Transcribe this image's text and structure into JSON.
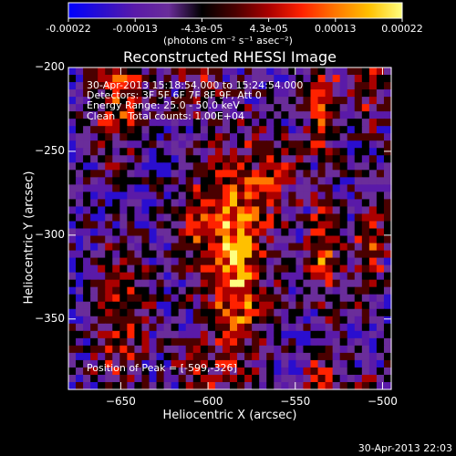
{
  "colorbar": {
    "tick_labels": [
      "-0.00022",
      "-0.00013",
      "-4.3e-05",
      "4.3e-05",
      "0.00013",
      "0.00022"
    ],
    "unit_label": "(photons cm⁻² s⁻¹ asec⁻²)",
    "colors": [
      "#0000ff",
      "#2a0ecf",
      "#5a1aa8",
      "#6a2d9a",
      "#000000",
      "#4a0000",
      "#aa0000",
      "#ff2200",
      "#ff7700",
      "#ffc000",
      "#ffff80"
    ]
  },
  "chart_data": {
    "type": "heatmap",
    "title": "Reconstructed RHESSI Image",
    "xlabel": "Heliocentric X (arcsec)",
    "ylabel": "Heliocentric Y (arcsec)",
    "xlim": [
      -680,
      -495
    ],
    "ylim": [
      -392,
      -200
    ],
    "x_ticks": [
      -650,
      -600,
      -550,
      -500
    ],
    "y_ticks": [
      -200,
      -250,
      -300,
      -350
    ],
    "x_tick_labels": [
      "−650",
      "−600",
      "−550",
      "−500"
    ],
    "y_tick_labels": [
      "−200",
      "−250",
      "−300",
      "−350"
    ],
    "annotations": {
      "time_range": "30-Apr-2013 15:18:54.000 to 15:24:54.000",
      "detectors": "Detectors: 3F 5F 6F 7F 8F 9F, Att 0",
      "energy_range": "Energy Range: 25.0 - 50.0 keV",
      "clean_counts": "Clean    Total counts: 1.00E+04",
      "peak_position": "Position of Peak = [-599,-326]"
    },
    "grid": false,
    "colormap": "blue-purple-black-red-yellow-white",
    "value_range": [
      -0.00022,
      0.00022
    ]
  },
  "footer": {
    "timestamp": "30-Apr-2013 22:03"
  }
}
